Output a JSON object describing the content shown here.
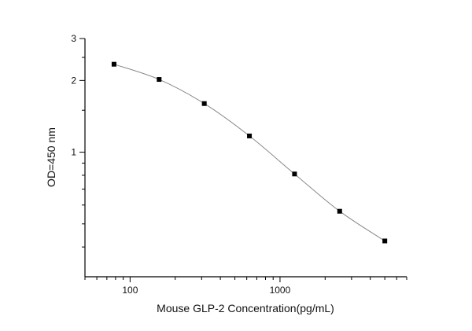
{
  "chart_data": {
    "type": "line",
    "title": "",
    "xlabel": "Mouse GLP-2 Concentration(pg/mL)",
    "ylabel": "OD=450 nm",
    "x_scale": "log",
    "y_scale": "log",
    "xlim": [
      50,
      7000
    ],
    "ylim": [
      0.3,
      3
    ],
    "x_ticks": [
      {
        "value": 100,
        "label": "100"
      },
      {
        "value": 1000,
        "label": "1000"
      }
    ],
    "y_ticks": [
      {
        "value": 1,
        "label": "1"
      },
      {
        "value": 2,
        "label": "2"
      },
      {
        "value": 3,
        "label": "3"
      }
    ],
    "grid": false,
    "marker": "square",
    "line_color": "#888888",
    "marker_color": "#000000",
    "series": [
      {
        "x": [
          78.125,
          156.25,
          312.5,
          625,
          1250,
          2500,
          5000
        ],
        "y": [
          2.34,
          2.02,
          1.6,
          1.17,
          0.81,
          0.565,
          0.424
        ]
      }
    ]
  }
}
